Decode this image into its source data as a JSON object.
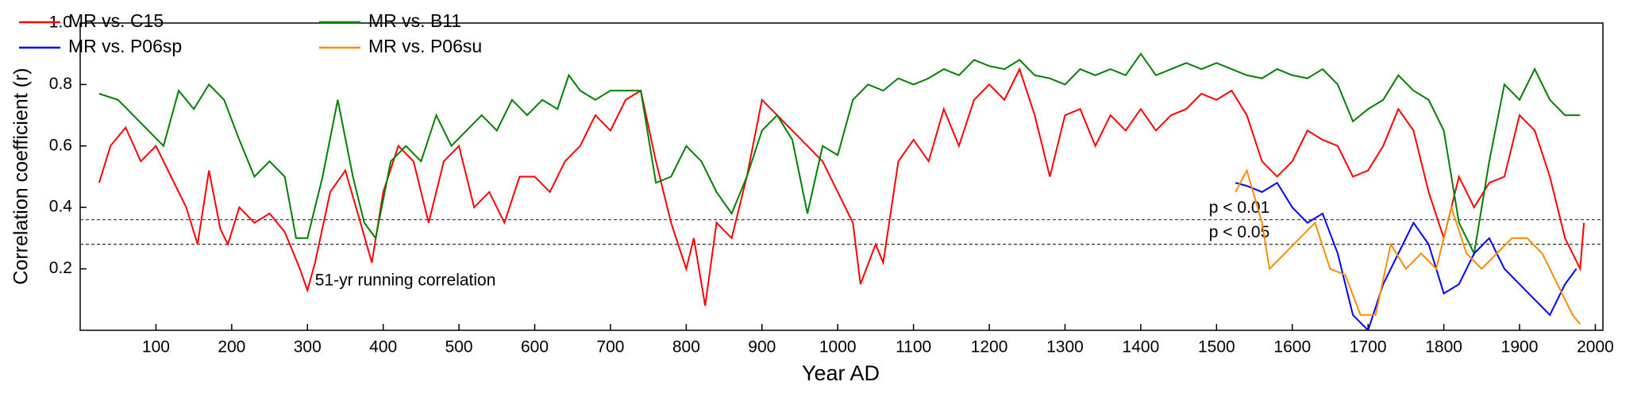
{
  "chart_data": {
    "type": "line",
    "xlabel": "Year AD",
    "ylabel": "Correlation coefficient (r)",
    "annotation": "51-yr running correlation",
    "xlim": [
      0,
      2010
    ],
    "ylim": [
      0,
      1.0
    ],
    "xticks": [
      100,
      200,
      300,
      400,
      500,
      600,
      700,
      800,
      900,
      1000,
      1100,
      1200,
      1300,
      1400,
      1500,
      1600,
      1700,
      1800,
      1900,
      2000
    ],
    "yticks": [
      0.2,
      0.4,
      0.6,
      0.8,
      {
        "value": 1.0,
        "label": "1.0"
      }
    ],
    "hlines": [
      {
        "value": 0.36,
        "label": "p < 0.01"
      },
      {
        "value": 0.28,
        "label": "p < 0.05"
      }
    ],
    "legend": "upper left",
    "series": [
      {
        "name": "MR vs. C15",
        "color": "#ff0000",
        "x": [
          25,
          40,
          60,
          80,
          100,
          120,
          140,
          155,
          170,
          185,
          195,
          210,
          230,
          250,
          270,
          290,
          300,
          310,
          330,
          350,
          370,
          385,
          400,
          420,
          440,
          460,
          480,
          500,
          520,
          540,
          560,
          580,
          600,
          620,
          640,
          660,
          680,
          700,
          720,
          740,
          760,
          780,
          800,
          810,
          825,
          840,
          860,
          880,
          900,
          920,
          940,
          960,
          980,
          1000,
          1020,
          1030,
          1050,
          1060,
          1080,
          1100,
          1120,
          1140,
          1160,
          1180,
          1200,
          1220,
          1240,
          1260,
          1280,
          1300,
          1320,
          1340,
          1360,
          1380,
          1400,
          1420,
          1440,
          1460,
          1480,
          1500,
          1520,
          1540,
          1560,
          1580,
          1600,
          1620,
          1640,
          1660,
          1680,
          1700,
          1720,
          1740,
          1760,
          1780,
          1800,
          1820,
          1840,
          1860,
          1880,
          1900,
          1920,
          1940,
          1960,
          1980,
          1985
        ],
        "values": [
          0.48,
          0.6,
          0.66,
          0.55,
          0.6,
          0.5,
          0.4,
          0.28,
          0.52,
          0.33,
          0.28,
          0.4,
          0.35,
          0.38,
          0.32,
          0.2,
          0.13,
          0.22,
          0.45,
          0.52,
          0.35,
          0.22,
          0.45,
          0.6,
          0.55,
          0.35,
          0.55,
          0.6,
          0.4,
          0.45,
          0.35,
          0.5,
          0.5,
          0.45,
          0.55,
          0.6,
          0.7,
          0.65,
          0.75,
          0.78,
          0.55,
          0.35,
          0.2,
          0.3,
          0.08,
          0.35,
          0.3,
          0.5,
          0.75,
          0.7,
          0.65,
          0.6,
          0.55,
          0.45,
          0.35,
          0.15,
          0.28,
          0.22,
          0.55,
          0.62,
          0.55,
          0.72,
          0.6,
          0.75,
          0.8,
          0.75,
          0.85,
          0.7,
          0.5,
          0.7,
          0.72,
          0.6,
          0.7,
          0.65,
          0.72,
          0.65,
          0.7,
          0.72,
          0.77,
          0.75,
          0.78,
          0.7,
          0.55,
          0.5,
          0.55,
          0.65,
          0.62,
          0.6,
          0.5,
          0.52,
          0.6,
          0.72,
          0.65,
          0.45,
          0.3,
          0.5,
          0.4,
          0.48,
          0.5,
          0.7,
          0.65,
          0.5,
          0.3,
          0.2,
          0.35
        ]
      },
      {
        "name": "MR vs. B11",
        "color": "#008000",
        "x": [
          25,
          50,
          70,
          90,
          110,
          130,
          150,
          170,
          190,
          210,
          230,
          250,
          270,
          285,
          300,
          320,
          340,
          360,
          375,
          390,
          410,
          430,
          450,
          470,
          490,
          510,
          530,
          550,
          570,
          590,
          610,
          630,
          645,
          660,
          680,
          700,
          720,
          740,
          760,
          780,
          800,
          820,
          840,
          860,
          880,
          900,
          920,
          940,
          960,
          980,
          1000,
          1020,
          1040,
          1060,
          1080,
          1100,
          1120,
          1140,
          1160,
          1180,
          1200,
          1220,
          1240,
          1260,
          1280,
          1300,
          1320,
          1340,
          1360,
          1380,
          1400,
          1420,
          1440,
          1460,
          1480,
          1500,
          1520,
          1540,
          1560,
          1580,
          1600,
          1620,
          1640,
          1660,
          1680,
          1700,
          1720,
          1740,
          1760,
          1780,
          1800,
          1820,
          1840,
          1860,
          1880,
          1900,
          1920,
          1940,
          1960,
          1980
        ],
        "values": [
          0.77,
          0.75,
          0.7,
          0.65,
          0.6,
          0.78,
          0.72,
          0.8,
          0.75,
          0.62,
          0.5,
          0.55,
          0.5,
          0.3,
          0.3,
          0.5,
          0.75,
          0.5,
          0.35,
          0.3,
          0.55,
          0.6,
          0.55,
          0.7,
          0.6,
          0.65,
          0.7,
          0.65,
          0.75,
          0.7,
          0.75,
          0.72,
          0.83,
          0.78,
          0.75,
          0.78,
          0.78,
          0.78,
          0.48,
          0.5,
          0.6,
          0.55,
          0.45,
          0.38,
          0.5,
          0.65,
          0.7,
          0.62,
          0.38,
          0.6,
          0.57,
          0.75,
          0.8,
          0.78,
          0.82,
          0.8,
          0.82,
          0.85,
          0.83,
          0.88,
          0.86,
          0.85,
          0.88,
          0.83,
          0.82,
          0.8,
          0.85,
          0.83,
          0.85,
          0.83,
          0.9,
          0.83,
          0.85,
          0.87,
          0.85,
          0.87,
          0.85,
          0.83,
          0.82,
          0.85,
          0.83,
          0.82,
          0.85,
          0.8,
          0.68,
          0.72,
          0.75,
          0.83,
          0.78,
          0.75,
          0.65,
          0.35,
          0.25,
          0.55,
          0.8,
          0.75,
          0.85,
          0.75,
          0.7,
          0.7
        ]
      },
      {
        "name": "MR vs. P06sp",
        "color": "#0000ff",
        "x": [
          1525,
          1540,
          1560,
          1580,
          1600,
          1620,
          1640,
          1660,
          1680,
          1700,
          1720,
          1740,
          1760,
          1780,
          1800,
          1820,
          1840,
          1860,
          1880,
          1900,
          1920,
          1940,
          1960,
          1975
        ],
        "values": [
          0.48,
          0.47,
          0.45,
          0.48,
          0.4,
          0.35,
          0.38,
          0.25,
          0.05,
          0.0,
          0.15,
          0.25,
          0.35,
          0.28,
          0.12,
          0.15,
          0.25,
          0.3,
          0.2,
          0.15,
          0.1,
          0.05,
          0.15,
          0.2
        ]
      },
      {
        "name": "MR vs. P06su",
        "color": "#ff8c00",
        "x": [
          1525,
          1540,
          1560,
          1570,
          1590,
          1610,
          1630,
          1650,
          1670,
          1690,
          1710,
          1730,
          1750,
          1770,
          1790,
          1810,
          1830,
          1850,
          1870,
          1890,
          1910,
          1930,
          1950,
          1970,
          1980
        ],
        "values": [
          0.45,
          0.52,
          0.35,
          0.2,
          0.25,
          0.3,
          0.35,
          0.2,
          0.18,
          0.05,
          0.05,
          0.28,
          0.2,
          0.25,
          0.2,
          0.4,
          0.25,
          0.2,
          0.25,
          0.3,
          0.3,
          0.25,
          0.15,
          0.05,
          0.02
        ]
      }
    ]
  }
}
